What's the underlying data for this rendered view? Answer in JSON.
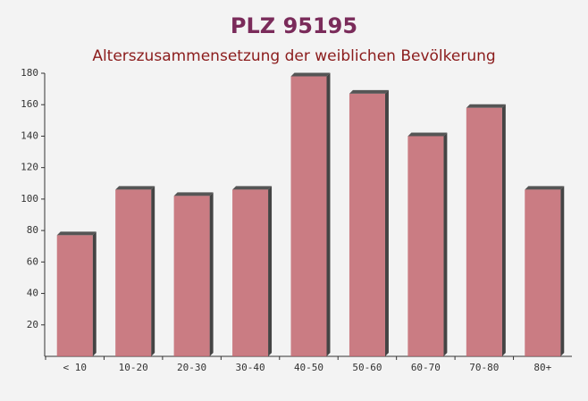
{
  "chart_data": {
    "type": "bar",
    "title": "PLZ 95195",
    "subtitle": "Alterszusammensetzung der weiblichen Bevölkerung",
    "categories": [
      "< 10",
      "10-20",
      "20-30",
      "30-40",
      "40-50",
      "50-60",
      "60-70",
      "70-80",
      "80+"
    ],
    "values": [
      77,
      106,
      102,
      106,
      178,
      167,
      140,
      158,
      106
    ],
    "color": "#c2666e",
    "ylim": [
      0,
      180
    ],
    "yticks": [
      20,
      40,
      60,
      80,
      100,
      120,
      140,
      160,
      180
    ],
    "grid": false
  }
}
